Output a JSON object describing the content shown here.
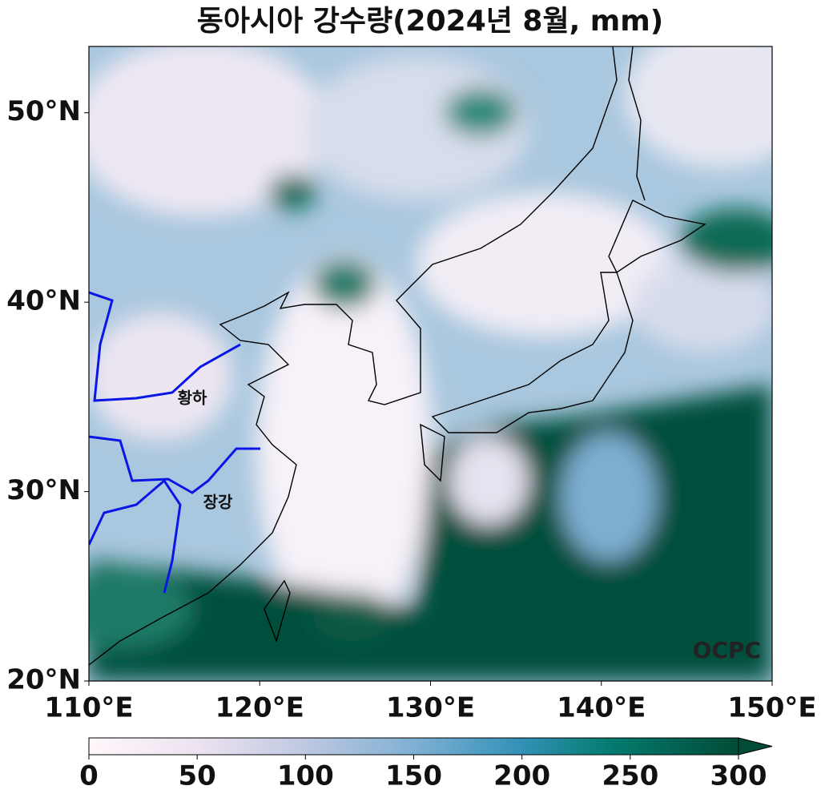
{
  "title": "동아시아 강수량(2024년 8월, mm)",
  "map": {
    "xlim": [
      110,
      150
    ],
    "ylim": [
      20,
      53.5
    ],
    "xticks": [
      {
        "value": 110,
        "label": "110°E"
      },
      {
        "value": 120,
        "label": "120°E"
      },
      {
        "value": 130,
        "label": "130°E"
      },
      {
        "value": 140,
        "label": "140°E"
      },
      {
        "value": 150,
        "label": "150°E"
      }
    ],
    "yticks": [
      {
        "value": 20,
        "label": "20°N"
      },
      {
        "value": 30,
        "label": "30°N"
      },
      {
        "value": 40,
        "label": "40°N"
      },
      {
        "value": 50,
        "label": "50°N"
      }
    ],
    "annotations": [
      "황하",
      "장강"
    ],
    "watermark": "OCPC"
  },
  "colorbar": {
    "lim": [
      0,
      300
    ],
    "ticks": [
      0,
      50,
      100,
      150,
      200,
      250,
      300
    ],
    "extend": "max"
  }
}
